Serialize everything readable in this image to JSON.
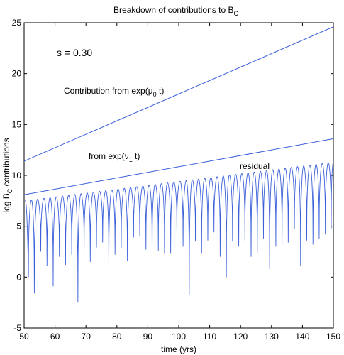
{
  "chart_data": {
    "type": "line",
    "title": {
      "main": "Breakdown of contributions to B",
      "sub": "C"
    },
    "xlabel": "time (yrs)",
    "ylabel": {
      "pre": "log B",
      "sub": "C",
      "post": " contributions"
    },
    "xlim": [
      50,
      150
    ],
    "ylim": [
      -5,
      25
    ],
    "x_ticks": [
      50,
      60,
      70,
      80,
      90,
      100,
      110,
      120,
      130,
      140,
      150
    ],
    "y_ticks": [
      -5,
      0,
      5,
      10,
      15,
      20,
      25
    ],
    "grid": false,
    "line_color": "#3a5fd9",
    "annotations": {
      "param_label": "s = 0.30",
      "mu": {
        "pre": "Contribution from exp(μ",
        "sub": "0",
        "post": " t)"
      },
      "nu": {
        "pre": "from exp(ν",
        "sub": "1",
        "post": " t)"
      },
      "residual": "residual"
    },
    "series": [
      {
        "key": "mu0",
        "x": [
          50,
          150
        ],
        "y": [
          11.4,
          24.6
        ]
      },
      {
        "key": "nu1",
        "x": [
          50,
          150
        ],
        "y": [
          8.1,
          13.6
        ]
      },
      {
        "key": "residual",
        "x_start": 50.3,
        "period": 2.0,
        "amplitude_start": 7.5,
        "amplitude_end": 11.3,
        "dip_x": [
          51.4,
          53.3,
          55.4,
          57.4,
          59.4,
          61.4,
          63.4,
          65.4,
          67.4,
          69.4,
          71.4,
          73.4,
          75.4,
          77.4,
          79.4,
          81.4,
          83.4,
          85.4,
          87.4,
          89.4,
          91.4,
          93.4,
          95.4,
          97.4,
          99.4,
          101.4,
          103.4,
          105.4,
          107.4,
          109.4,
          111.4,
          113.4,
          115.4,
          117.4,
          119.4,
          121.4,
          123.4,
          125.4,
          127.4,
          129.4,
          131.4,
          133.4,
          135.4,
          137.4,
          139.4,
          141.4,
          143.4,
          145.4,
          147.4,
          149.3
        ],
        "dip_y": [
          0.0,
          -1.6,
          2.5,
          1.1,
          -0.9,
          2.0,
          1.2,
          2.2,
          -2.5,
          2.6,
          1.5,
          2.9,
          3.4,
          0.9,
          2.2,
          2.9,
          1.6,
          3.9,
          4.0,
          2.7,
          2.3,
          2.6,
          2.3,
          2.3,
          4.6,
          3.0,
          -1.7,
          3.5,
          2.3,
          3.6,
          4.4,
          2.0,
          0.0,
          3.5,
          3.0,
          3.6,
          2.0,
          2.4,
          3.8,
          0.8,
          3.0,
          3.2,
          3.4,
          4.7,
          1.1,
          3.6,
          3.2,
          3.8,
          4.2,
          4.7
        ]
      }
    ]
  }
}
